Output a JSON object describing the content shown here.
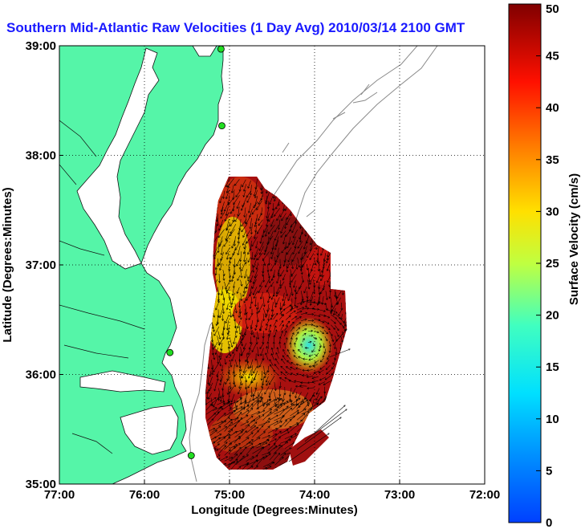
{
  "chart_data": {
    "type": "heatmap",
    "title": "Southern Mid-Atlantic Raw Velocities (1 Day Avg) 2010/03/14 2100 GMT",
    "xlabel": "Longitude (Degrees:Minutes)",
    "ylabel": "Latitude (Degrees:Minutes)",
    "colorbar_label": "Surface Velocity (cm/s)",
    "xlim": [
      -77,
      -72
    ],
    "ylim": [
      35,
      39
    ],
    "x_ticks": [
      {
        "value": -77,
        "label": "77:00"
      },
      {
        "value": -76,
        "label": "76:00"
      },
      {
        "value": -75,
        "label": "75:00"
      },
      {
        "value": -74,
        "label": "74:00"
      },
      {
        "value": -73,
        "label": "73:00"
      },
      {
        "value": -72,
        "label": "72:00"
      }
    ],
    "y_ticks": [
      {
        "value": 35,
        "label": "35:00"
      },
      {
        "value": 36,
        "label": "36:00"
      },
      {
        "value": 37,
        "label": "37:00"
      },
      {
        "value": 38,
        "label": "38:00"
      },
      {
        "value": 39,
        "label": "39:00"
      }
    ],
    "colorbar_range": [
      0,
      50
    ],
    "colorbar_ticks": [
      0,
      5,
      10,
      15,
      20,
      25,
      30,
      35,
      40,
      45,
      50
    ],
    "grid": true,
    "colormap": "jet",
    "land_color": "#55f5a8",
    "station_color": "#22dd22",
    "stations": [
      {
        "lon": -75.1,
        "lat": 38.97
      },
      {
        "lon": -75.09,
        "lat": 38.27
      },
      {
        "lon": -75.7,
        "lat": 36.2
      },
      {
        "lon": -75.45,
        "lat": 35.26
      }
    ],
    "velocity_regions": [
      {
        "lon": -75.2,
        "lat": 37.4,
        "speed": 45
      },
      {
        "lon": -74.8,
        "lat": 37.4,
        "speed": 44
      },
      {
        "lon": -74.4,
        "lat": 37.2,
        "speed": 42
      },
      {
        "lon": -75.15,
        "lat": 37.1,
        "speed": 28
      },
      {
        "lon": -75.2,
        "lat": 36.6,
        "speed": 25
      },
      {
        "lon": -74.85,
        "lat": 36.75,
        "speed": 42
      },
      {
        "lon": -74.6,
        "lat": 36.45,
        "speed": 40
      },
      {
        "lon": -74.4,
        "lat": 36.35,
        "speed": 20
      },
      {
        "lon": -74.15,
        "lat": 36.25,
        "speed": 14
      },
      {
        "lon": -74.9,
        "lat": 36.05,
        "speed": 25
      },
      {
        "lon": -74.6,
        "lat": 35.85,
        "speed": 34
      },
      {
        "lon": -74.9,
        "lat": 35.55,
        "speed": 40
      },
      {
        "lon": -74.7,
        "lat": 35.25,
        "speed": 46
      }
    ]
  }
}
